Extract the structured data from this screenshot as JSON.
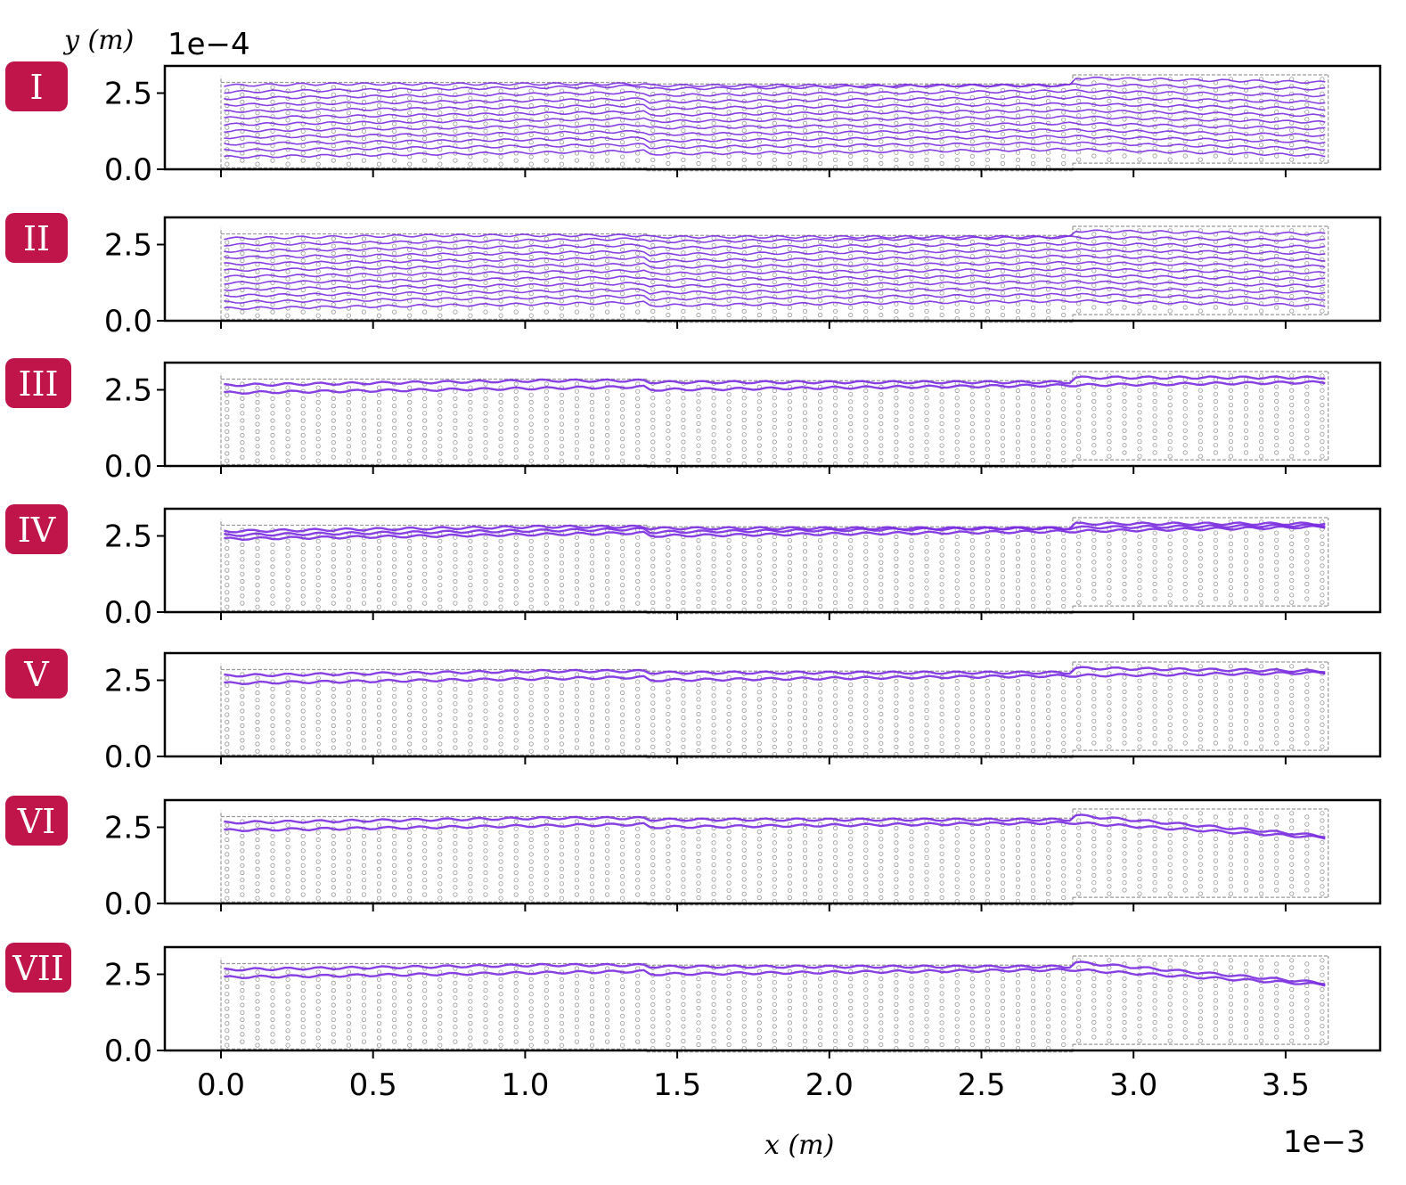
{
  "figure": {
    "y_axis_label": "y (m)",
    "y_axis_exponent": "1e−4",
    "x_axis_label": "x (m)",
    "x_axis_exponent": "1e−3"
  },
  "colors": {
    "streamline": "#7a2be0",
    "obstacle_outline": "#9a9a9a",
    "badge": "#c0154a",
    "axes": "#000000"
  },
  "chart_data": {
    "type": "line",
    "x_ticks": [
      0.0,
      0.5,
      1.0,
      1.5,
      2.0,
      2.5,
      3.0,
      3.5
    ],
    "x_tick_labels": [
      "0.0",
      "0.5",
      "1.0",
      "1.5",
      "2.0",
      "2.5",
      "3.0",
      "3.5"
    ],
    "xlim": [
      -0.18,
      3.84
    ],
    "y_ticks": [
      0.0,
      2.5
    ],
    "y_tick_labels": [
      "0.0",
      "2.5"
    ],
    "ylim": [
      -0.1,
      3.3
    ],
    "grid": false,
    "legend": "none",
    "panels": [
      {
        "label": "I",
        "streamline_count": 12,
        "y_start": [
          0.4,
          2.75
        ],
        "y_end": [
          0.45,
          2.85
        ]
      },
      {
        "label": "II",
        "streamline_count": 12,
        "y_start": [
          0.4,
          2.7
        ],
        "y_end": [
          0.5,
          2.85
        ]
      },
      {
        "label": "III",
        "streamline_count": 2,
        "y_start": [
          2.4,
          2.65
        ],
        "y_end": [
          2.75,
          2.9
        ]
      },
      {
        "label": "IV",
        "streamline_count": 3,
        "y_start": [
          2.4,
          2.65
        ],
        "y_end": [
          2.8,
          2.9
        ]
      },
      {
        "label": "V",
        "streamline_count": 2,
        "y_start": [
          2.4,
          2.65
        ],
        "y_end": [
          2.75,
          2.8
        ]
      },
      {
        "label": "VI",
        "streamline_count": 2,
        "y_start": [
          2.4,
          2.65
        ],
        "y_end": [
          2.15,
          2.2
        ]
      },
      {
        "label": "VII",
        "streamline_count": 2,
        "y_start": [
          2.4,
          2.65
        ],
        "y_end": [
          2.15,
          2.2
        ]
      }
    ],
    "channel": {
      "x_range": [
        0.0,
        3.64
      ],
      "sections": [
        {
          "x_from": 0.0,
          "x_to": 1.4,
          "y_from": 0.05,
          "y_to": 2.85
        },
        {
          "x_from": 1.4,
          "x_to": 2.8,
          "y_from": -0.05,
          "y_to": 2.8
        },
        {
          "x_from": 2.8,
          "x_to": 3.64,
          "y_from": 0.2,
          "y_to": 3.1
        }
      ]
    }
  }
}
